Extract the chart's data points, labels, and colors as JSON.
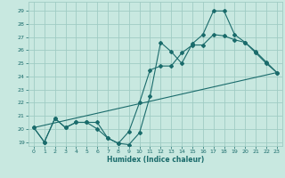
{
  "title": "",
  "xlabel": "Humidex (Indice chaleur)",
  "xlim": [
    -0.5,
    23.5
  ],
  "ylim": [
    18.7,
    29.7
  ],
  "yticks": [
    19,
    20,
    21,
    22,
    23,
    24,
    25,
    26,
    27,
    28,
    29
  ],
  "xticks": [
    0,
    1,
    2,
    3,
    4,
    5,
    6,
    7,
    8,
    9,
    10,
    11,
    12,
    13,
    14,
    15,
    16,
    17,
    18,
    19,
    20,
    21,
    22,
    23
  ],
  "bg_color": "#c8e8e0",
  "grid_color": "#a0ccc4",
  "line_color": "#1a6b6b",
  "line1_x": [
    0,
    1,
    2,
    3,
    4,
    5,
    6,
    7,
    8,
    9,
    10,
    11,
    12,
    13,
    14,
    15,
    16,
    17,
    18,
    19,
    20,
    21,
    22,
    23
  ],
  "line1_y": [
    20.1,
    19.0,
    20.8,
    20.1,
    20.5,
    20.5,
    20.5,
    19.3,
    18.9,
    18.8,
    19.7,
    22.5,
    26.6,
    25.9,
    25.0,
    26.5,
    27.2,
    29.0,
    29.0,
    27.2,
    26.6,
    25.9,
    25.1,
    24.3
  ],
  "line2_x": [
    0,
    1,
    2,
    3,
    4,
    5,
    6,
    7,
    8,
    9,
    10,
    11,
    12,
    13,
    14,
    15,
    16,
    17,
    18,
    19,
    20,
    21,
    22,
    23
  ],
  "line2_y": [
    20.1,
    19.0,
    20.8,
    20.1,
    20.5,
    20.5,
    20.0,
    19.3,
    18.9,
    19.8,
    22.0,
    24.5,
    24.8,
    24.8,
    25.8,
    26.4,
    26.4,
    27.2,
    27.1,
    26.8,
    26.6,
    25.8,
    25.0,
    24.3
  ],
  "line3_x": [
    0,
    23
  ],
  "line3_y": [
    20.1,
    24.3
  ]
}
